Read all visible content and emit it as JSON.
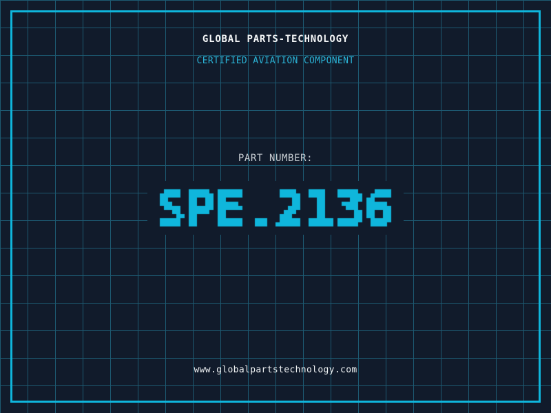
{
  "header": {
    "title": "GLOBAL PARTS-TECHNOLOGY",
    "subtitle": "CERTIFIED AVIATION COMPONENT"
  },
  "part": {
    "label": "PART NUMBER:",
    "number": "SPE.2136"
  },
  "footer": {
    "url": "www.globalpartstechnology.com"
  },
  "colors": {
    "background": "#111b2b",
    "grid": "#1d5a72",
    "frame": "#0fb6dc",
    "title": "#f4f6f7",
    "subtitle": "#2bb3d6",
    "label": "#c9cfd4",
    "part_number": "#0fb6dc",
    "url": "#eef1f2"
  }
}
